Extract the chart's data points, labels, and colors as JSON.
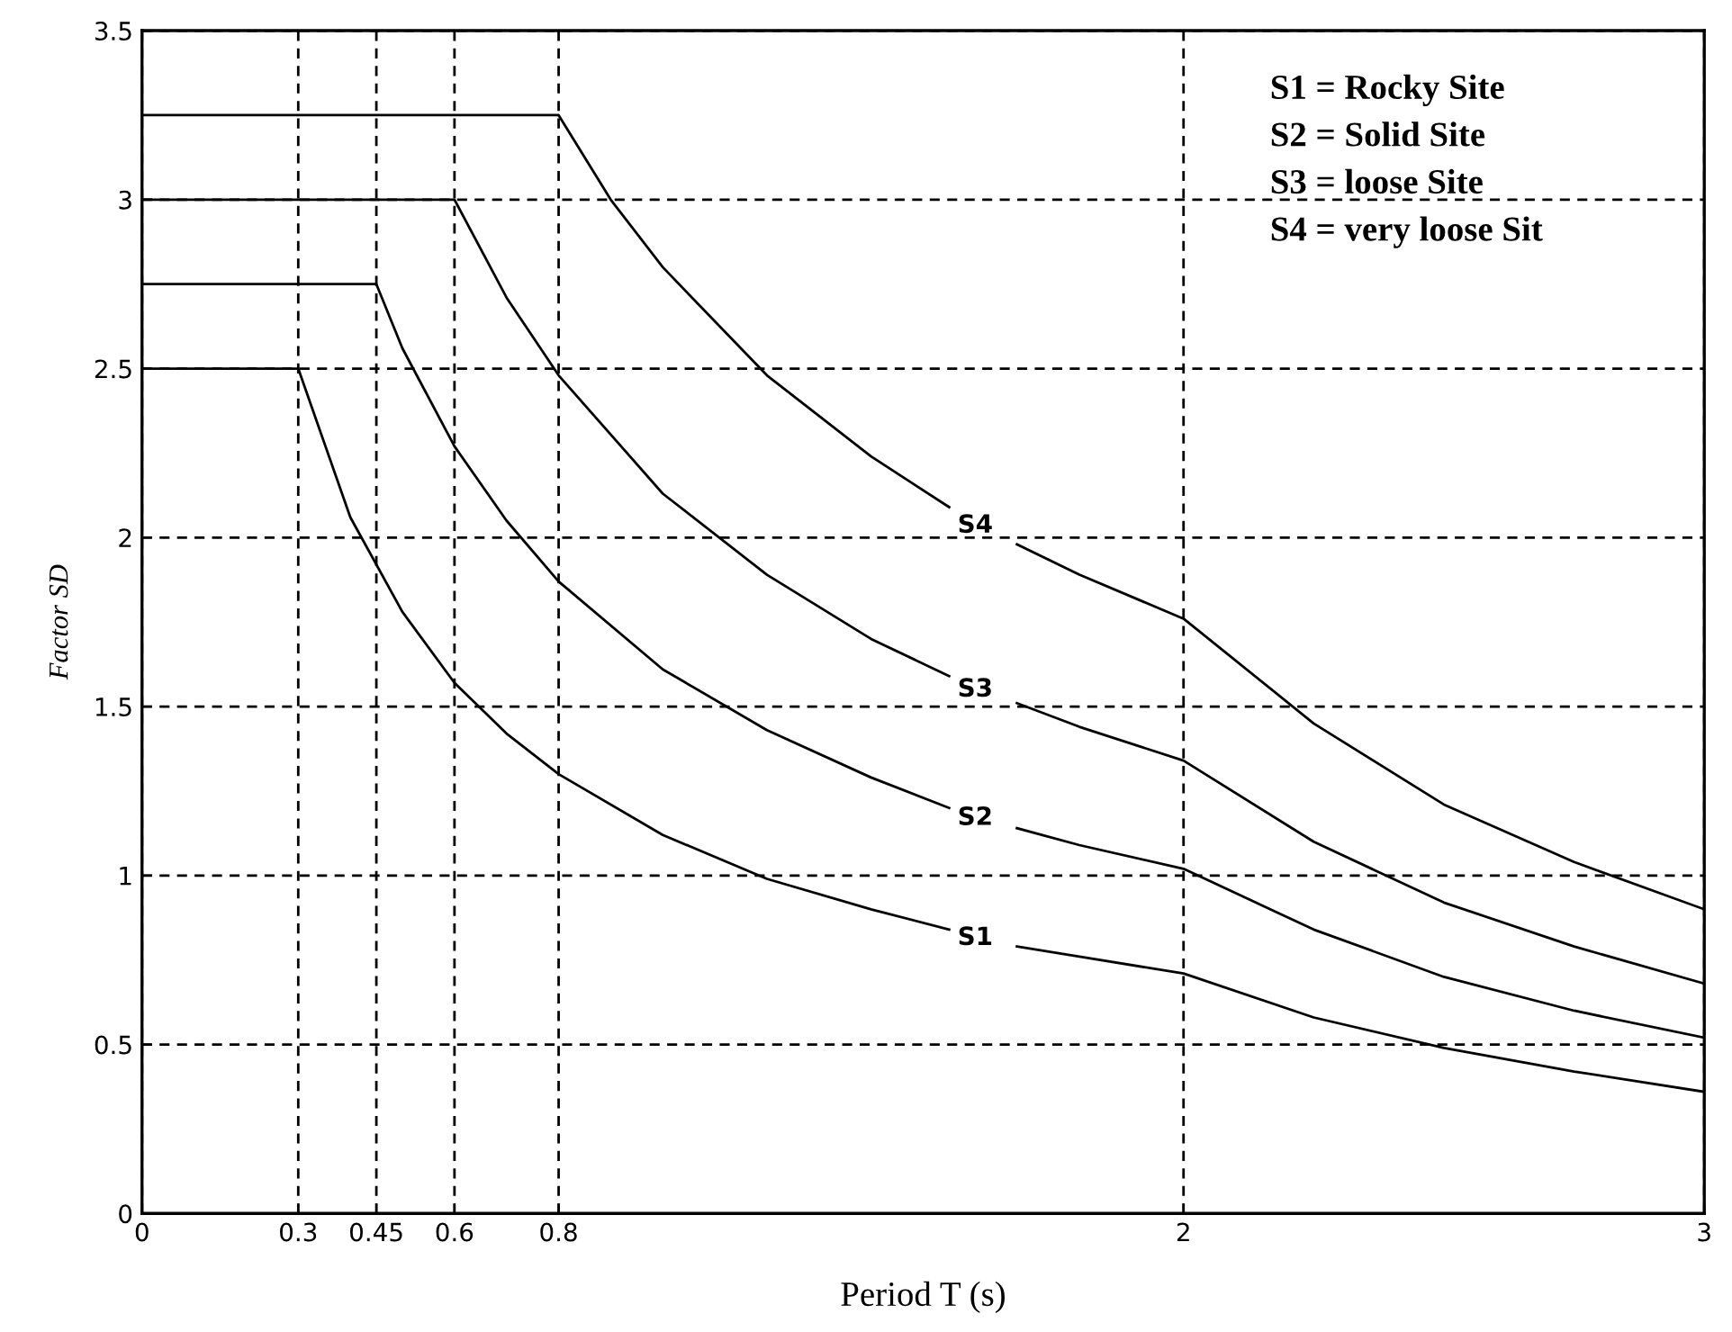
{
  "chart_data": {
    "type": "line",
    "xlabel": "Period T (s)",
    "ylabel": "Factor SD",
    "xlim": [
      0,
      3
    ],
    "xticks": [
      0,
      0.3,
      0.45,
      0.6,
      0.8,
      2,
      3
    ],
    "ylim": [
      0,
      3.5
    ],
    "yticks": [
      0,
      0.5,
      1,
      1.5,
      2,
      2.5,
      3,
      3.5
    ],
    "grid": true,
    "series": [
      {
        "name": "S1",
        "color": "#000000",
        "x": [
          0,
          0.3,
          0.4,
          0.5,
          0.6,
          0.7,
          0.8,
          1.0,
          1.2,
          1.4,
          1.55,
          1.6,
          1.68,
          1.8,
          2.0,
          2.25,
          2.5,
          2.75,
          3.0
        ],
        "values": [
          2.5,
          2.5,
          2.06,
          1.78,
          1.57,
          1.42,
          1.3,
          1.12,
          0.99,
          0.9,
          0.84,
          null,
          0.79,
          0.76,
          0.71,
          0.58,
          0.49,
          0.42,
          0.36
        ]
      },
      {
        "name": "S2",
        "color": "#000000",
        "x": [
          0,
          0.45,
          0.5,
          0.6,
          0.7,
          0.8,
          1.0,
          1.2,
          1.4,
          1.55,
          1.6,
          1.68,
          1.8,
          2.0,
          2.25,
          2.5,
          2.75,
          3.0
        ],
        "values": [
          2.75,
          2.75,
          2.56,
          2.27,
          2.05,
          1.87,
          1.61,
          1.43,
          1.29,
          1.2,
          null,
          1.14,
          1.09,
          1.02,
          0.84,
          0.7,
          0.6,
          0.52
        ]
      },
      {
        "name": "S3",
        "color": "#000000",
        "x": [
          0,
          0.6,
          0.7,
          0.8,
          1.0,
          1.2,
          1.4,
          1.55,
          1.6,
          1.68,
          1.8,
          2.0,
          2.25,
          2.5,
          2.75,
          3.0
        ],
        "values": [
          3.0,
          3.0,
          2.71,
          2.48,
          2.13,
          1.89,
          1.7,
          1.59,
          null,
          1.51,
          1.44,
          1.34,
          1.1,
          0.92,
          0.79,
          0.68
        ]
      },
      {
        "name": "S4",
        "color": "#000000",
        "x": [
          0,
          0.8,
          0.9,
          1.0,
          1.2,
          1.4,
          1.55,
          1.6,
          1.68,
          1.8,
          2.0,
          2.25,
          2.5,
          2.75,
          3.0
        ],
        "values": [
          3.25,
          3.25,
          3.0,
          2.8,
          2.48,
          2.24,
          2.09,
          null,
          1.98,
          1.89,
          1.76,
          1.45,
          1.21,
          1.04,
          0.9
        ]
      }
    ],
    "annotations": [
      "S1 = Rocky Site",
      "S2 = Solid Site",
      "S3 = loose Site",
      "S4 = very loose Sit"
    ]
  }
}
